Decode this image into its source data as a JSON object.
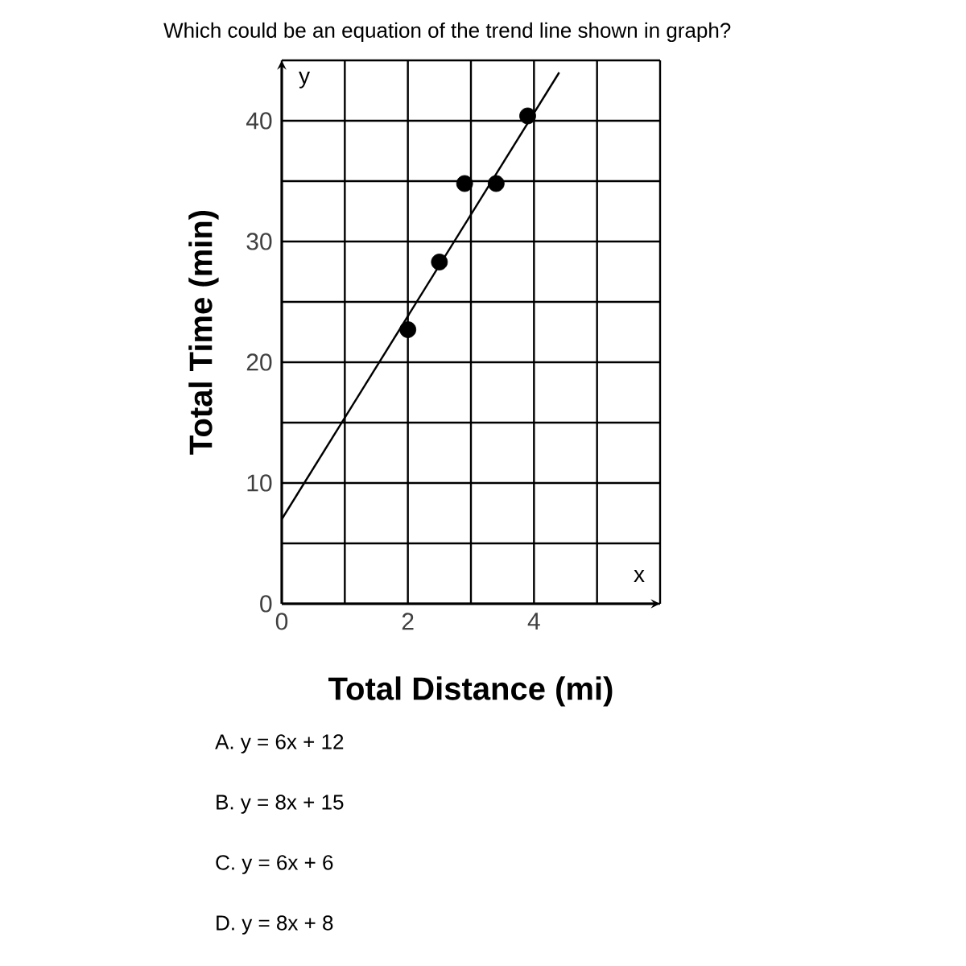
{
  "chart_data": {
    "type": "scatter",
    "title": "Which could be an equation of the trend line shown in graph?",
    "xlabel": "Total Distance (mi)",
    "ylabel": "Total Time (min)",
    "xlim": [
      0,
      6
    ],
    "ylim": [
      0,
      45
    ],
    "xticks": [
      0,
      {
        "value": 1,
        "label": null
      },
      2,
      {
        "value": 3,
        "label": null
      },
      4,
      {
        "value": 5,
        "label": null
      },
      {
        "value": 6,
        "label": null
      }
    ],
    "yticks": [
      0,
      {
        "value": 5,
        "label": null
      },
      10,
      {
        "value": 15,
        "label": null
      },
      20,
      {
        "value": 25,
        "label": null
      },
      30,
      {
        "value": 35,
        "label": null
      },
      40,
      {
        "value": 45,
        "label": null
      }
    ],
    "grid": true,
    "series": [
      {
        "color": "#000000",
        "marker": "circle",
        "x": [
          2,
          2.5,
          2.9,
          3.4,
          3.9
        ],
        "values": [
          22.7,
          28.3,
          34.8,
          34.8,
          40.4
        ]
      },
      {
        "type": "line",
        "color": "#000000",
        "marker": "none",
        "x": [
          0,
          4.4
        ],
        "values": [
          7,
          44
        ]
      }
    ],
    "annotations": [
      "y",
      "x",
      "A.  y = 6x + 12",
      "B.  y = 8x + 15",
      "C.  y = 6x + 6",
      "D.  y = 8x + 8"
    ]
  }
}
